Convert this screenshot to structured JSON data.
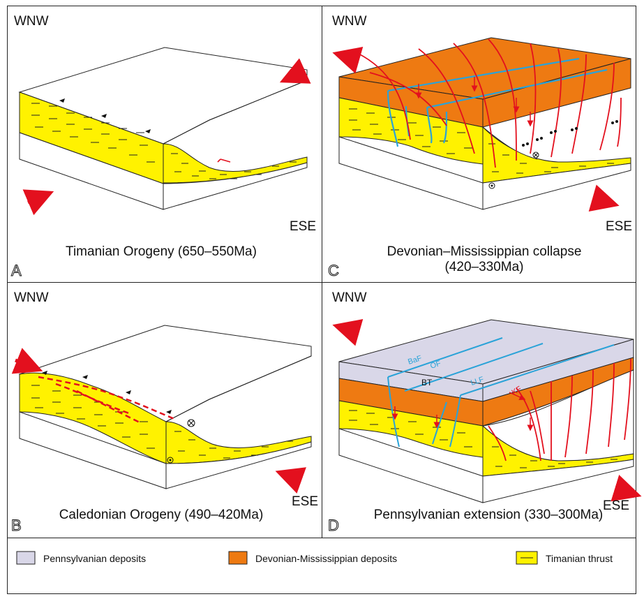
{
  "panels": {
    "A": {
      "letter": "A",
      "wnw": "WNW",
      "ese": "ESE",
      "caption": "Timanian Orogeny (650–550Ma)"
    },
    "B": {
      "letter": "B",
      "wnw": "WNW",
      "ese": "ESE",
      "caption": "Caledonian Orogeny (490–420Ma)"
    },
    "C": {
      "letter": "C",
      "wnw": "WNW",
      "ese": "ESE",
      "caption_line1": "Devonian–Mississippian collapse",
      "caption_line2": "(420–330Ma)"
    },
    "D": {
      "letter": "D",
      "wnw": "WNW",
      "ese": "ESE",
      "caption": "Pennsylvanian extension (330–300Ma)",
      "fault_labels": {
        "baf": "BaF",
        "of": "OF",
        "llf": "LLF",
        "kf": "KF",
        "bt": "BT"
      }
    }
  },
  "legend": {
    "items": [
      {
        "label": "Pennsylvanian deposits",
        "color": "#d9d7e8"
      },
      {
        "label": "Devonian-Mississippian deposits",
        "color": "#ee7a12"
      },
      {
        "label": "Timanian thrust",
        "color": "#fff200"
      }
    ]
  },
  "colors": {
    "yellow": "#fff200",
    "orange": "#ee7a12",
    "lavender": "#d9d7e8",
    "red": "#e3101e",
    "blue": "#2aa3d8"
  }
}
